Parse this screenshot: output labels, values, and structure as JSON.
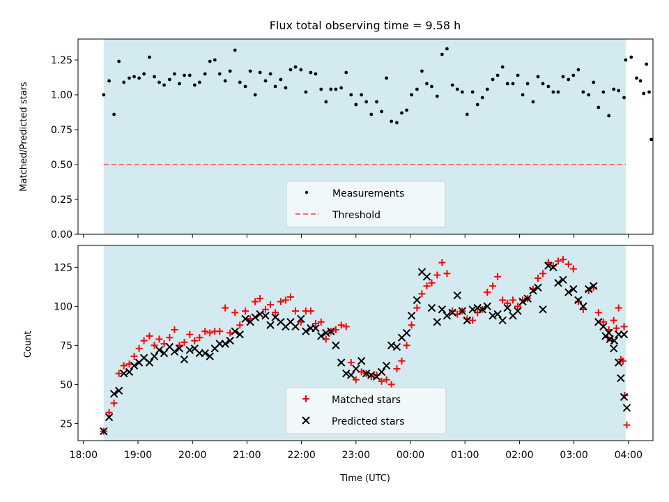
{
  "chart_data": [
    {
      "type": "scatter",
      "title": "Flux total observing time = 9.58 h",
      "xlabel": "",
      "ylabel": "Matched/Predicted stars",
      "xlim": [
        -0.1,
        10.45
      ],
      "ylim": [
        0,
        1.4
      ],
      "yticks": [
        0.0,
        0.25,
        0.5,
        0.75,
        1.0,
        1.25
      ],
      "ytick_labels": [
        "0.00",
        "0.25",
        "0.50",
        "0.75",
        "1.00",
        "1.25"
      ],
      "shaded_span": [
        0.37,
        9.95
      ],
      "shade_color": "#d3eaf0",
      "threshold": 0.5,
      "legend_position": "lower center",
      "series": [
        {
          "name": "Measurements",
          "color": "#000000",
          "x": [
            0.37,
            0.47,
            0.56,
            0.65,
            0.74,
            0.84,
            0.93,
            1.02,
            1.11,
            1.21,
            1.3,
            1.39,
            1.48,
            1.58,
            1.67,
            1.76,
            1.85,
            1.95,
            2.04,
            2.13,
            2.23,
            2.32,
            2.41,
            2.5,
            2.6,
            2.69,
            2.78,
            2.87,
            2.97,
            3.06,
            3.15,
            3.24,
            3.34,
            3.43,
            3.52,
            3.62,
            3.71,
            3.8,
            3.89,
            3.99,
            4.08,
            4.17,
            4.26,
            4.36,
            4.45,
            4.54,
            4.63,
            4.73,
            4.82,
            4.91,
            5.0,
            5.1,
            5.19,
            5.28,
            5.38,
            5.47,
            5.56,
            5.65,
            5.75,
            5.84,
            5.93,
            6.02,
            6.12,
            6.21,
            6.3,
            6.39,
            6.49,
            6.58,
            6.67,
            6.77,
            6.86,
            6.95,
            7.04,
            7.14,
            7.23,
            7.32,
            7.41,
            7.51,
            7.6,
            7.69,
            7.78,
            7.88,
            7.97,
            8.06,
            8.15,
            8.25,
            8.34,
            8.43,
            8.53,
            8.62,
            8.71,
            8.8,
            8.9,
            8.99,
            9.08,
            9.17,
            9.27,
            9.36,
            9.45,
            9.54,
            9.64,
            9.73,
            9.82,
            9.92,
            9.95
          ],
          "y": [
            1.0,
            1.1,
            0.86,
            1.24,
            1.09,
            1.12,
            1.13,
            1.12,
            1.15,
            1.27,
            1.13,
            1.09,
            1.07,
            1.11,
            1.15,
            1.08,
            1.14,
            1.14,
            1.07,
            1.09,
            1.15,
            1.24,
            1.25,
            1.15,
            1.1,
            1.17,
            1.32,
            1.09,
            1.06,
            1.17,
            1.0,
            1.16,
            1.1,
            1.15,
            1.06,
            1.11,
            1.05,
            1.18,
            1.2,
            1.18,
            1.02,
            1.16,
            1.15,
            1.04,
            0.95,
            1.04,
            1.04,
            1.05,
            1.16,
            1.0,
            0.93,
            1.0,
            0.95,
            0.86,
            0.95,
            0.88,
            1.12,
            0.81,
            0.8,
            0.87,
            0.89,
            1.0,
            1.04,
            1.17,
            1.08,
            1.06,
            0.99,
            1.29,
            1.33,
            1.07,
            1.04,
            1.02,
            0.86,
            1.02,
            0.93,
            0.98,
            1.04,
            1.11,
            1.14,
            1.2,
            1.08,
            1.08,
            1.14,
            1.0,
            1.08,
            0.95,
            1.13,
            1.08,
            1.06,
            1.02,
            1.02,
            1.13,
            1.11,
            1.14,
            1.18,
            1.02,
            1.0,
            1.09,
            0.91,
            1.02,
            0.85,
            1.04,
            1.03,
            0.98,
            1.25
          ],
          "extra_points": [
            [
              10.05,
              1.27
            ],
            [
              10.15,
              1.12
            ],
            [
              10.22,
              1.1
            ],
            [
              10.28,
              1.01
            ],
            [
              10.33,
              1.22
            ],
            [
              10.38,
              1.02
            ],
            [
              10.42,
              0.68
            ]
          ]
        }
      ],
      "lines": [
        {
          "name": "Threshold",
          "color": "#f07070",
          "style": "dashed"
        }
      ]
    },
    {
      "type": "scatter",
      "title": "",
      "xlabel": "Time (UTC)",
      "ylabel": "Count",
      "xlim": [
        -0.1,
        10.45
      ],
      "ylim": [
        14,
        139
      ],
      "yticks": [
        25,
        50,
        75,
        100,
        125
      ],
      "ytick_labels": [
        "25",
        "50",
        "75",
        "100",
        "125"
      ],
      "xticks": [
        0,
        1,
        2,
        3,
        4,
        5,
        6,
        7,
        8,
        9,
        10
      ],
      "xtick_labels": [
        "18:00",
        "19:00",
        "20:00",
        "21:00",
        "22:00",
        "23:00",
        "00:00",
        "01:00",
        "02:00",
        "03:00",
        "04:00"
      ],
      "shaded_span": [
        0.37,
        9.95
      ],
      "shade_color": "#d3eaf0",
      "legend_position": "lower center",
      "series": [
        {
          "name": "Matched stars",
          "color": "#ff0000",
          "marker": "plus",
          "x": [
            0.37,
            0.47,
            0.56,
            0.65,
            0.74,
            0.84,
            0.93,
            1.02,
            1.11,
            1.21,
            1.3,
            1.39,
            1.48,
            1.58,
            1.67,
            1.76,
            1.85,
            1.95,
            2.04,
            2.13,
            2.23,
            2.32,
            2.41,
            2.5,
            2.6,
            2.69,
            2.78,
            2.87,
            2.97,
            3.06,
            3.15,
            3.24,
            3.34,
            3.43,
            3.52,
            3.62,
            3.71,
            3.8,
            3.89,
            3.99,
            4.08,
            4.17,
            4.26,
            4.36,
            4.45,
            4.54,
            4.63,
            4.73,
            4.82,
            4.91,
            5.0,
            5.1,
            5.19,
            5.28,
            5.38,
            5.47,
            5.56,
            5.65,
            5.75,
            5.84,
            5.93,
            6.02,
            6.12,
            6.21,
            6.3,
            6.39,
            6.49,
            6.58,
            6.67,
            6.77,
            6.86,
            6.95,
            7.04,
            7.14,
            7.23,
            7.32,
            7.41,
            7.51,
            7.6,
            7.69,
            7.78,
            7.88,
            7.97,
            8.06,
            8.15,
            8.25,
            8.34,
            8.43,
            8.53,
            8.62,
            8.71,
            8.8,
            8.9,
            8.99,
            9.08,
            9.17,
            9.27,
            9.36,
            9.45,
            9.54,
            9.64,
            9.73,
            9.82,
            9.92,
            9.97
          ],
          "y": [
            20,
            32,
            38,
            57,
            62,
            63,
            68,
            73,
            78,
            81,
            75,
            79,
            76,
            80,
            85,
            75,
            77,
            82,
            78,
            80,
            84,
            83,
            84,
            84,
            99,
            83,
            96,
            88,
            97,
            92,
            103,
            105,
            98,
            101,
            96,
            103,
            104,
            106,
            97,
            90,
            97,
            97,
            89,
            90,
            79,
            84,
            85,
            88,
            87,
            64,
            53,
            58,
            57,
            55,
            56,
            52,
            53,
            50,
            60,
            65,
            75,
            88,
            99,
            108,
            113,
            115,
            120,
            128,
            121,
            97,
            95,
            97,
            92,
            91,
            96,
            98,
            109,
            113,
            119,
            104,
            102,
            104,
            100,
            104,
            105,
            111,
            118,
            121,
            128,
            126,
            129,
            130,
            127,
            124,
            103,
            98,
            110,
            112,
            96,
            90,
            85,
            91,
            99,
            87,
            24
          ],
          "extra_points": [
            [
              9.62,
              80
            ],
            [
              9.7,
              78
            ],
            [
              9.78,
              86
            ],
            [
              9.86,
              66
            ],
            [
              9.9,
              65
            ],
            [
              9.93,
              43
            ]
          ]
        },
        {
          "name": "Predicted stars",
          "color": "#000000",
          "marker": "x",
          "x": [
            0.37,
            0.47,
            0.56,
            0.65,
            0.74,
            0.84,
            0.93,
            1.02,
            1.11,
            1.21,
            1.3,
            1.39,
            1.48,
            1.58,
            1.67,
            1.76,
            1.85,
            1.95,
            2.04,
            2.13,
            2.23,
            2.32,
            2.41,
            2.5,
            2.6,
            2.69,
            2.78,
            2.87,
            2.97,
            3.06,
            3.15,
            3.24,
            3.34,
            3.43,
            3.52,
            3.62,
            3.71,
            3.8,
            3.89,
            3.99,
            4.08,
            4.17,
            4.26,
            4.36,
            4.45,
            4.54,
            4.63,
            4.73,
            4.82,
            4.91,
            5.0,
            5.1,
            5.19,
            5.28,
            5.38,
            5.47,
            5.56,
            5.65,
            5.75,
            5.84,
            5.93,
            6.02,
            6.12,
            6.21,
            6.3,
            6.39,
            6.49,
            6.58,
            6.67,
            6.77,
            6.86,
            6.95,
            7.04,
            7.14,
            7.23,
            7.32,
            7.41,
            7.51,
            7.6,
            7.69,
            7.78,
            7.88,
            7.97,
            8.06,
            8.15,
            8.25,
            8.34,
            8.43,
            8.53,
            8.62,
            8.71,
            8.8,
            8.9,
            8.99,
            9.08,
            9.17,
            9.27,
            9.36,
            9.45,
            9.54,
            9.64,
            9.73,
            9.82,
            9.92,
            9.97
          ],
          "y": [
            20,
            29,
            44,
            46,
            57,
            58,
            62,
            64,
            67,
            64,
            68,
            72,
            70,
            74,
            71,
            73,
            66,
            72,
            73,
            70,
            70,
            68,
            73,
            76,
            76,
            78,
            84,
            82,
            92,
            90,
            93,
            95,
            94,
            88,
            93,
            90,
            87,
            90,
            87,
            92,
            84,
            86,
            86,
            81,
            83,
            84,
            75,
            64,
            57,
            56,
            60,
            65,
            57,
            56,
            55,
            58,
            62,
            75,
            74,
            80,
            83,
            94,
            104,
            122,
            119,
            99,
            90,
            98,
            94,
            96,
            107,
            97,
            91,
            98,
            99,
            98,
            100,
            94,
            95,
            91,
            99,
            94,
            97,
            103,
            105,
            110,
            112,
            98,
            126,
            125,
            115,
            117,
            109,
            111,
            104,
            100,
            111,
            113,
            90,
            87,
            83,
            73,
            82,
            82,
            35
          ],
          "extra_points": [
            [
              9.58,
              81
            ],
            [
              9.66,
              79
            ],
            [
              9.74,
              78
            ],
            [
              9.82,
              64
            ],
            [
              9.86,
              54
            ],
            [
              9.92,
              42
            ]
          ]
        }
      ]
    }
  ],
  "legend_top": {
    "measurements_label": "Measurements",
    "threshold_label": "Threshold"
  },
  "legend_bottom": {
    "matched_label": "Matched stars",
    "predicted_label": "Predicted stars"
  },
  "titles": {
    "top_title": "Flux total observing time = 9.58 h",
    "top_ylabel": "Matched/Predicted stars",
    "bottom_ylabel": "Count",
    "bottom_xlabel": "Time (UTC)"
  }
}
